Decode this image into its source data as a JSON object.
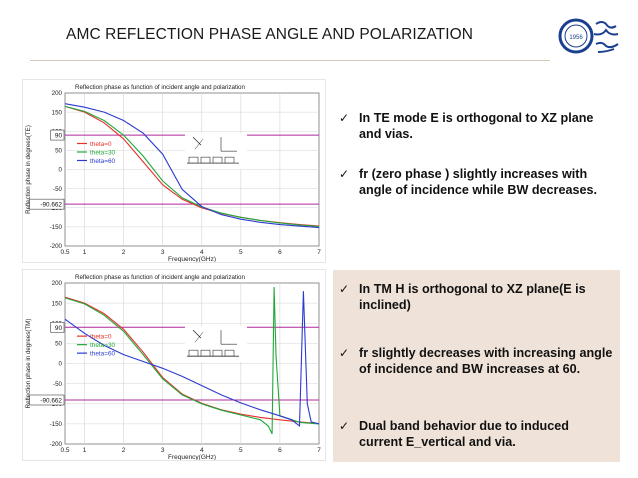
{
  "slide": {
    "title": "AMC REFLECTION PHASE  ANGLE AND POLARIZATION",
    "logo_year": "1956"
  },
  "notes_top": [
    {
      "text": "In TE mode E is orthogonal to XZ plane and vias."
    },
    {
      "text": "fr (zero phase ) slightly increases with angle of incidence while BW decreases."
    }
  ],
  "notes_bottom": [
    {
      "text": "In TM H is orthogonal to XZ plane(E is inclined)"
    },
    {
      "text": "fr slightly decreases  with increasing angle of incidence and BW increases at 60."
    },
    {
      "text": "Dual band behavior due to induced current E_vertical and via."
    }
  ],
  "colors": {
    "theta0": "#e8302a",
    "theta30": "#21a83a",
    "theta60": "#2b3bd0",
    "marker_lines": "#b0289a",
    "panel_bg": "#efe2d8"
  },
  "chart_data": [
    {
      "type": "line",
      "title": "Reflection phase as function of incident angle and polarization",
      "xlabel": "Frequency(GHz)",
      "ylabel": "Reflection phase in degrees(TE)",
      "xlim": [
        0.5,
        7
      ],
      "ylim": [
        -200,
        200
      ],
      "x_ticks": [
        "0.5",
        "1",
        "2",
        "3",
        "4",
        "5",
        "6",
        "7"
      ],
      "y_ticks": [
        "200",
        "150",
        "100",
        "50",
        "0",
        "-50",
        "-100",
        "-150",
        "-200"
      ],
      "grid": true,
      "legend_position": "left",
      "reference_lines": [
        {
          "label": "90",
          "y": 90
        },
        {
          "label": "-90.662",
          "y": -90.662
        }
      ],
      "series": [
        {
          "name": "theta=0",
          "color_key": "theta0",
          "x": [
            0.5,
            1,
            1.5,
            2,
            2.5,
            3,
            3.5,
            4,
            4.5,
            5,
            5.5,
            6,
            6.5,
            7
          ],
          "y": [
            165,
            150,
            122,
            80,
            20,
            -40,
            -78,
            -100,
            -115,
            -125,
            -133,
            -139,
            -144,
            -148
          ]
        },
        {
          "name": "theta=30",
          "color_key": "theta30",
          "x": [
            0.5,
            1,
            1.5,
            2,
            2.5,
            3,
            3.5,
            4,
            4.5,
            5,
            5.5,
            6,
            6.5,
            7
          ],
          "y": [
            165,
            152,
            128,
            90,
            35,
            -30,
            -74,
            -98,
            -114,
            -125,
            -133,
            -140,
            -145,
            -149
          ]
        },
        {
          "name": "theta=60",
          "color_key": "theta60",
          "x": [
            0.5,
            1,
            1.5,
            2,
            2.5,
            3,
            3.5,
            4,
            4.5,
            5,
            5.5,
            6,
            6.5,
            7
          ],
          "y": [
            172,
            163,
            150,
            128,
            95,
            40,
            -52,
            -97,
            -118,
            -130,
            -138,
            -144,
            -148,
            -152
          ]
        }
      ]
    },
    {
      "type": "line",
      "title": "Reflection phase as function of incident angle and polarization",
      "xlabel": "Frequency(GHz)",
      "ylabel": "Reflection phase in degrees(TM)",
      "xlim": [
        0.5,
        7
      ],
      "ylim": [
        -200,
        200
      ],
      "x_ticks": [
        "0.5",
        "1",
        "2",
        "3",
        "4",
        "5",
        "6",
        "7"
      ],
      "y_ticks": [
        "200",
        "150",
        "100",
        "50",
        "0",
        "-50",
        "-100",
        "-150",
        "-200"
      ],
      "grid": true,
      "legend_position": "left",
      "reference_lines": [
        {
          "label": "90",
          "y": 90
        },
        {
          "label": "-90.662",
          "y": -90.662
        }
      ],
      "series": [
        {
          "name": "theta=0",
          "color_key": "theta0",
          "x": [
            0.5,
            1,
            1.5,
            2,
            2.5,
            3,
            3.5,
            4,
            4.5,
            5,
            5.5,
            6,
            6.5,
            7
          ],
          "y": [
            165,
            150,
            124,
            85,
            28,
            -35,
            -76,
            -99,
            -115,
            -126,
            -134,
            -140,
            -145,
            -149
          ]
        },
        {
          "name": "theta=30",
          "color_key": "theta30",
          "x": [
            0.5,
            1,
            1.5,
            2,
            2.5,
            3,
            3.5,
            4,
            4.5,
            5,
            5.5,
            5.7,
            5.8,
            5.85,
            5.9,
            6,
            6.5,
            7
          ],
          "y": [
            163,
            148,
            120,
            80,
            22,
            -38,
            -78,
            -100,
            -116,
            -128,
            -140,
            -155,
            -175,
            190,
            20,
            -130,
            -146,
            -150
          ]
        },
        {
          "name": "theta=60",
          "color_key": "theta60",
          "x": [
            0.5,
            1,
            1.5,
            2,
            2.5,
            3,
            3.5,
            4,
            4.5,
            5,
            5.5,
            6,
            6.3,
            6.5,
            6.6,
            6.7,
            6.8,
            7
          ],
          "y": [
            110,
            75,
            45,
            22,
            5,
            -12,
            -32,
            -55,
            -78,
            -98,
            -115,
            -130,
            -140,
            -155,
            180,
            -100,
            -145,
            -150
          ]
        }
      ]
    }
  ]
}
